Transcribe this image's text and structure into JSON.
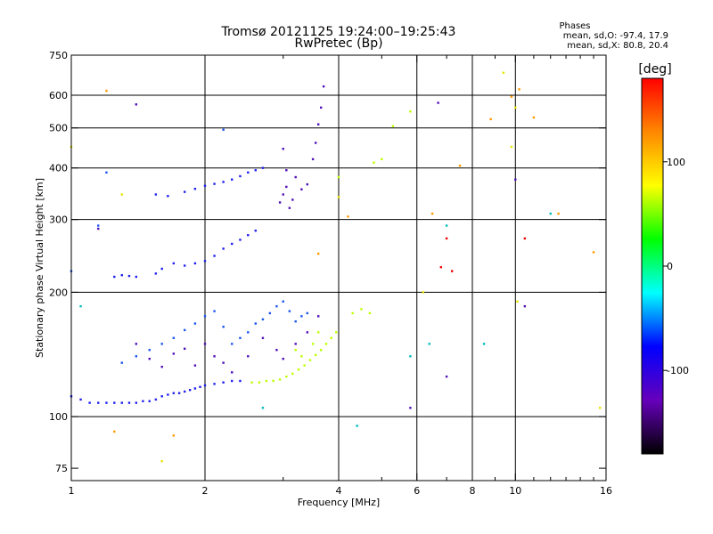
{
  "chart_data": {
    "type": "scatter",
    "title": "Tromsø 20121125 19:24:00–19:25:43",
    "subtitle": "RwPretec (Bp)",
    "stats_title": "Phases",
    "stats_lines": [
      "mean, sd,O: -97.4, 17.9",
      "mean, sd,X: 80.8, 20.4"
    ],
    "xlabel": "Frequency [MHz]",
    "ylabel": "Stationary phase Virtual Height [km]",
    "x_scale": "log",
    "y_scale": "log",
    "xlim": [
      1,
      16
    ],
    "ylim": [
      70,
      750
    ],
    "x_ticks": [
      1,
      2,
      4,
      6,
      8,
      10,
      16
    ],
    "x_minor_ticks": [
      3,
      5,
      7,
      9,
      11,
      12,
      13,
      14,
      15
    ],
    "y_ticks": [
      75,
      100,
      200,
      300,
      400,
      500,
      600,
      750
    ],
    "x_grid": [
      2,
      4,
      6,
      8,
      10
    ],
    "y_grid": [
      100,
      200,
      300,
      400,
      500,
      600
    ],
    "colorbar": {
      "label": "[deg]",
      "range": [
        -180,
        180
      ],
      "ticks": [
        100,
        0,
        -100
      ],
      "stops": [
        "#ff0000",
        "#ff8800",
        "#ffff00",
        "#00ff00",
        "#00ffff",
        "#0000ff",
        "#6600bb",
        "#000000"
      ]
    },
    "series": [
      {
        "color": "#2020ee",
        "points": [
          [
            1.0,
            112
          ],
          [
            1.05,
            110
          ],
          [
            1.1,
            108
          ],
          [
            1.15,
            108
          ],
          [
            1.2,
            108
          ],
          [
            1.25,
            108
          ],
          [
            1.3,
            108
          ],
          [
            1.35,
            108
          ],
          [
            1.4,
            108
          ],
          [
            1.45,
            109
          ],
          [
            1.5,
            109
          ],
          [
            1.55,
            110
          ],
          [
            1.6,
            112
          ],
          [
            1.65,
            113
          ],
          [
            1.7,
            114
          ],
          [
            1.75,
            114
          ],
          [
            1.8,
            115
          ],
          [
            1.85,
            116
          ],
          [
            1.9,
            117
          ],
          [
            1.95,
            118
          ],
          [
            2.0,
            119
          ],
          [
            2.1,
            120
          ],
          [
            2.2,
            121
          ],
          [
            2.3,
            122
          ],
          [
            2.4,
            122
          ],
          [
            1.25,
            218
          ],
          [
            1.3,
            220
          ],
          [
            1.35,
            219
          ],
          [
            1.4,
            218
          ],
          [
            1.55,
            222
          ],
          [
            1.6,
            228
          ],
          [
            1.7,
            235
          ],
          [
            1.8,
            232
          ],
          [
            1.9,
            235
          ],
          [
            2.0,
            238
          ],
          [
            2.1,
            245
          ],
          [
            2.2,
            255
          ],
          [
            2.3,
            262
          ],
          [
            2.4,
            268
          ],
          [
            2.5,
            275
          ],
          [
            2.6,
            282
          ],
          [
            1.55,
            345
          ],
          [
            1.65,
            342
          ],
          [
            1.8,
            350
          ],
          [
            1.9,
            356
          ],
          [
            2.0,
            362
          ],
          [
            2.1,
            366
          ],
          [
            2.2,
            370
          ],
          [
            2.3,
            375
          ],
          [
            2.4,
            382
          ],
          [
            2.5,
            390
          ],
          [
            2.6,
            395
          ],
          [
            2.7,
            400
          ]
        ]
      },
      {
        "color": "#1a55ee",
        "points": [
          [
            1.3,
            135
          ],
          [
            1.4,
            140
          ],
          [
            1.5,
            145
          ],
          [
            1.6,
            150
          ],
          [
            1.7,
            155
          ],
          [
            1.8,
            162
          ],
          [
            1.9,
            168
          ],
          [
            2.0,
            175
          ],
          [
            2.1,
            180
          ],
          [
            2.2,
            165
          ],
          [
            2.3,
            150
          ],
          [
            2.4,
            155
          ],
          [
            2.5,
            160
          ],
          [
            2.6,
            168
          ],
          [
            2.7,
            172
          ],
          [
            2.8,
            178
          ],
          [
            2.9,
            185
          ],
          [
            3.0,
            190
          ],
          [
            3.1,
            180
          ],
          [
            3.2,
            170
          ],
          [
            3.3,
            175
          ],
          [
            3.4,
            178
          ],
          [
            1.2,
            390
          ],
          [
            2.2,
            495
          ],
          [
            1.15,
            290
          ],
          [
            1.0,
            225
          ]
        ]
      },
      {
        "color": "#5010b8",
        "points": [
          [
            1.4,
            150
          ],
          [
            1.5,
            138
          ],
          [
            1.6,
            132
          ],
          [
            1.7,
            142
          ],
          [
            1.8,
            146
          ],
          [
            1.9,
            133
          ],
          [
            2.0,
            150
          ],
          [
            2.1,
            140
          ],
          [
            2.2,
            135
          ],
          [
            2.3,
            128
          ],
          [
            2.5,
            140
          ],
          [
            2.7,
            155
          ],
          [
            2.9,
            145
          ],
          [
            3.0,
            138
          ],
          [
            3.2,
            150
          ],
          [
            3.4,
            160
          ],
          [
            3.6,
            175
          ],
          [
            2.95,
            330
          ],
          [
            3.0,
            345
          ],
          [
            3.05,
            360
          ],
          [
            3.1,
            320
          ],
          [
            3.15,
            335
          ],
          [
            3.2,
            380
          ],
          [
            3.3,
            355
          ],
          [
            3.4,
            365
          ],
          [
            3.5,
            420
          ],
          [
            3.55,
            460
          ],
          [
            3.6,
            510
          ],
          [
            3.65,
            560
          ],
          [
            3.7,
            630
          ],
          [
            3.05,
            395
          ],
          [
            3.0,
            445
          ],
          [
            1.15,
            285
          ],
          [
            1.4,
            570
          ],
          [
            6.7,
            575
          ],
          [
            7.0,
            125
          ],
          [
            5.8,
            105
          ],
          [
            10.5,
            185
          ],
          [
            10.0,
            375
          ]
        ]
      },
      {
        "color": "#bcff00",
        "points": [
          [
            2.55,
            121
          ],
          [
            2.65,
            121
          ],
          [
            2.75,
            122
          ],
          [
            2.85,
            122
          ],
          [
            2.95,
            123
          ],
          [
            3.05,
            125
          ],
          [
            3.15,
            127
          ],
          [
            3.25,
            130
          ],
          [
            3.35,
            133
          ],
          [
            3.45,
            137
          ],
          [
            3.55,
            141
          ],
          [
            3.65,
            145
          ],
          [
            3.75,
            150
          ],
          [
            3.85,
            155
          ],
          [
            3.95,
            160
          ],
          [
            3.6,
            160
          ],
          [
            3.5,
            150
          ],
          [
            3.3,
            140
          ],
          [
            3.2,
            145
          ],
          [
            4.3,
            178
          ],
          [
            4.5,
            182
          ],
          [
            4.7,
            178
          ],
          [
            4.8,
            412
          ],
          [
            5.0,
            420
          ],
          [
            5.3,
            505
          ],
          [
            5.8,
            548
          ],
          [
            4.0,
            380
          ]
        ]
      },
      {
        "color": "#ff9900",
        "points": [
          [
            1.2,
            615
          ],
          [
            1.25,
            92
          ],
          [
            1.7,
            90
          ],
          [
            3.6,
            248
          ],
          [
            4.2,
            305
          ],
          [
            6.5,
            310
          ],
          [
            7.5,
            405
          ],
          [
            8.8,
            525
          ],
          [
            9.8,
            595
          ],
          [
            10.2,
            620
          ],
          [
            11.0,
            530
          ],
          [
            12.5,
            310
          ],
          [
            15.0,
            250
          ]
        ]
      },
      {
        "color": "#e6e600",
        "points": [
          [
            1.0,
            450
          ],
          [
            1.3,
            345
          ],
          [
            1.6,
            78
          ],
          [
            4.0,
            340
          ],
          [
            9.4,
            680
          ],
          [
            9.8,
            450
          ],
          [
            10.0,
            560
          ],
          [
            10.1,
            190
          ],
          [
            15.5,
            105
          ],
          [
            6.2,
            200
          ]
        ]
      },
      {
        "color": "#00bbbb",
        "points": [
          [
            1.05,
            185
          ],
          [
            2.7,
            105
          ],
          [
            4.4,
            95
          ],
          [
            5.8,
            140
          ],
          [
            6.4,
            150
          ],
          [
            8.5,
            150
          ],
          [
            12.0,
            310
          ],
          [
            7.0,
            290
          ]
        ]
      },
      {
        "color": "#ee0000",
        "points": [
          [
            6.8,
            230
          ],
          [
            7.0,
            270
          ],
          [
            10.5,
            270
          ],
          [
            7.2,
            225
          ]
        ]
      }
    ]
  }
}
